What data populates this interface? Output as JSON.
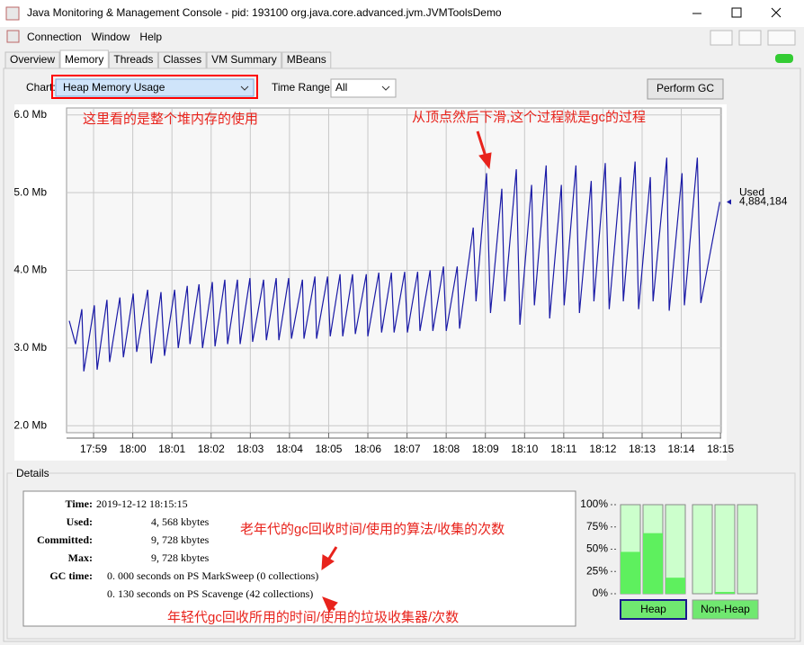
{
  "window": {
    "title": "Java Monitoring & Management Console - pid: 193100 org.java.core.advanced.jvm.JVMToolsDemo"
  },
  "menu": [
    "Connection",
    "Window",
    "Help"
  ],
  "tabs": [
    "Overview",
    "Memory",
    "Threads",
    "Classes",
    "VM Summary",
    "MBeans"
  ],
  "active_tab": 1,
  "controls": {
    "chart_label": "Chart:",
    "chart_value": "Heap Memory Usage",
    "time_range_label": "Time Range:",
    "time_range_value": "All",
    "button": "Perform GC"
  },
  "chart_data": [
    {
      "type": "line",
      "x": [
        1078.38,
        1078.54,
        1078.7,
        1078.75,
        1079.02,
        1079.09,
        1079.34,
        1079.41,
        1079.67,
        1079.76,
        1080.01,
        1080.1,
        1080.38,
        1080.47,
        1080.72,
        1080.81,
        1081.07,
        1081.16,
        1081.39,
        1081.46,
        1081.69,
        1081.78,
        1082.03,
        1082.1,
        1082.35,
        1082.42,
        1082.67,
        1082.74,
        1082.99,
        1083.06,
        1083.34,
        1083.41,
        1083.66,
        1083.73,
        1083.98,
        1084.05,
        1084.33,
        1084.37,
        1084.65,
        1084.69,
        1084.97,
        1085.04,
        1085.29,
        1085.36,
        1085.61,
        1085.68,
        1085.96,
        1086.0,
        1086.28,
        1086.35,
        1086.6,
        1086.67,
        1086.94,
        1087.01,
        1087.27,
        1087.33,
        1087.59,
        1087.66,
        1087.93,
        1088.0,
        1088.28,
        1088.34,
        1088.69,
        1088.76,
        1089.03,
        1089.13,
        1089.42,
        1089.49,
        1089.79,
        1089.88,
        1090.18,
        1090.25,
        1090.55,
        1090.64,
        1090.94,
        1091.01,
        1091.31,
        1091.4,
        1091.7,
        1091.77,
        1092.06,
        1092.16,
        1092.45,
        1092.52,
        1092.82,
        1092.91,
        1093.21,
        1093.28,
        1093.63,
        1093.69,
        1094.02,
        1094.08,
        1094.41,
        1094.5,
        1094.98
      ],
      "series": [
        {
          "name": "Used",
          "color": "#1a1aa6",
          "latest_label": "4,884,184",
          "values": [
            3.35,
            3.05,
            3.5,
            2.7,
            3.55,
            2.72,
            3.62,
            2.82,
            3.65,
            2.88,
            3.7,
            2.95,
            3.75,
            2.8,
            3.72,
            2.9,
            3.75,
            3.0,
            3.8,
            3.05,
            3.82,
            3.0,
            3.85,
            3.02,
            3.88,
            3.05,
            3.88,
            3.05,
            3.9,
            3.08,
            3.88,
            3.1,
            3.9,
            3.1,
            3.9,
            3.12,
            3.88,
            3.12,
            3.92,
            3.12,
            3.92,
            3.15,
            3.95,
            3.15,
            3.95,
            3.18,
            3.95,
            3.15,
            3.97,
            3.2,
            3.97,
            3.2,
            3.98,
            3.2,
            3.98,
            3.22,
            4.0,
            3.22,
            4.05,
            3.22,
            4.05,
            3.25,
            4.55,
            3.6,
            5.25,
            3.45,
            5.05,
            3.6,
            5.3,
            3.3,
            5.1,
            3.55,
            5.35,
            3.38,
            5.1,
            3.55,
            5.35,
            3.45,
            5.15,
            3.6,
            5.38,
            3.5,
            5.2,
            3.6,
            5.4,
            3.5,
            5.2,
            3.6,
            5.45,
            3.48,
            5.25,
            3.55,
            5.45,
            3.58,
            4.88
          ]
        }
      ],
      "xlim": [
        1078.31,
        1095.02
      ],
      "xticks": [
        {
          "value": 1079,
          "label": "17:59"
        },
        {
          "value": 1080,
          "label": "18:00"
        },
        {
          "value": 1081,
          "label": "18:01"
        },
        {
          "value": 1082,
          "label": "18:02"
        },
        {
          "value": 1083,
          "label": "18:03"
        },
        {
          "value": 1084,
          "label": "18:04"
        },
        {
          "value": 1085,
          "label": "18:05"
        },
        {
          "value": 1086,
          "label": "18:06"
        },
        {
          "value": 1087,
          "label": "18:07"
        },
        {
          "value": 1088,
          "label": "18:08"
        },
        {
          "value": 1089,
          "label": "18:09"
        },
        {
          "value": 1090,
          "label": "18:10"
        },
        {
          "value": 1091,
          "label": "18:11"
        },
        {
          "value": 1092,
          "label": "18:12"
        },
        {
          "value": 1093,
          "label": "18:13"
        },
        {
          "value": 1094,
          "label": "18:14"
        },
        {
          "value": 1095,
          "label": "18:15"
        }
      ],
      "ylim": [
        1.91,
        6.09
      ],
      "yticks": [
        {
          "value": 2,
          "label": "2.0 Mb"
        },
        {
          "value": 3,
          "label": "3.0 Mb"
        },
        {
          "value": 4,
          "label": "4.0 Mb"
        },
        {
          "value": 5,
          "label": "5.0 Mb"
        },
        {
          "value": 6,
          "label": "6.0 Mb"
        }
      ],
      "grid": true
    },
    {
      "type": "bar",
      "groups": [
        {
          "label": "Heap",
          "values": [
            47,
            68,
            18
          ]
        },
        {
          "label": "Non-Heap",
          "values": [
            0,
            2,
            0
          ]
        }
      ],
      "color": "#5ef05e",
      "ylim": [
        0,
        100
      ],
      "yticks": [
        {
          "value": 0,
          "label": "0%"
        },
        {
          "value": 25,
          "label": "25%"
        },
        {
          "value": 50,
          "label": "50%"
        },
        {
          "value": 75,
          "label": "75%"
        },
        {
          "value": 100,
          "label": "100%"
        }
      ]
    }
  ],
  "details": {
    "title": "Details",
    "rows": [
      [
        "Time:",
        "2019-12-12 18:15:15"
      ],
      [
        "Used:",
        "4, 568 kbytes"
      ],
      [
        "Committed:",
        "9, 728 kbytes"
      ],
      [
        "Max:",
        "9, 728 kbytes"
      ],
      [
        "GC time:",
        "0. 000  seconds on PS MarkSweep (0 collections)"
      ],
      [
        "",
        "0. 130  seconds on PS Scavenge (42 collections)"
      ]
    ]
  },
  "annotations": [
    "这里看的是整个堆内存的使用",
    "从顶点然后下滑,这个过程就是gc的过程",
    "老年代的gc回收时间/使用的算法/收集的次数",
    "年轻代gc回收所用的时间/使用的垃圾收集器/次数"
  ]
}
